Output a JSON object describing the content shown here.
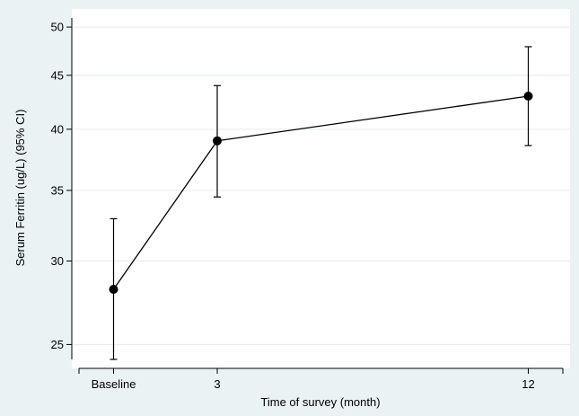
{
  "chart_data": {
    "type": "line",
    "xlabel": "Time of survey (month)",
    "ylabel": "Serum Ferritin (ug/L) (95% CI)",
    "y_scale": "log",
    "ylim": [
      24.2,
      51
    ],
    "y_ticks": [
      25,
      30,
      35,
      40,
      45,
      50
    ],
    "x_ticks": [
      {
        "value": 0,
        "label": "Baseline"
      },
      {
        "value": 3,
        "label": "3"
      },
      {
        "value": 12,
        "label": "12"
      }
    ],
    "xlim": [
      -1,
      13
    ],
    "grid": true,
    "series": [
      {
        "points": [
          {
            "x": 0,
            "x_label": "Baseline",
            "y": 28.2,
            "ci_low": 24.2,
            "ci_high": 32.9
          },
          {
            "x": 3,
            "x_label": "3",
            "y": 39.0,
            "ci_low": 34.5,
            "ci_high": 44.0
          },
          {
            "x": 12,
            "x_label": "12",
            "y": 43.0,
            "ci_low": 38.6,
            "ci_high": 47.9
          }
        ]
      }
    ]
  }
}
